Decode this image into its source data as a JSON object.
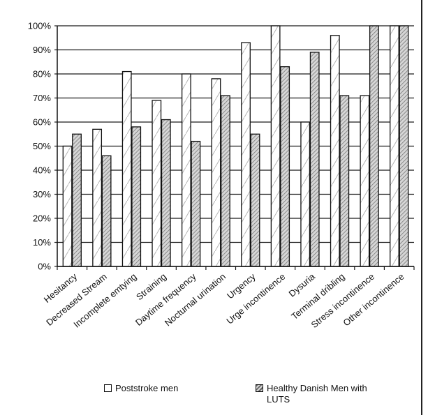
{
  "chart_data": {
    "type": "bar",
    "categories": [
      "Hesitancy",
      "Decreased Stream",
      "Incomplete emtying",
      "Straining",
      "Daytime frequency",
      "Nocturnal urination",
      "Urgency",
      "Urge incontinence",
      "Dysuria",
      "Terminal dribling",
      "Stress incontinence",
      "Other incontinence"
    ],
    "series": [
      {
        "name": "Poststroke men",
        "values": [
          50,
          57,
          81,
          69,
          80,
          78,
          93,
          100,
          60,
          96,
          71,
          100
        ],
        "color": "#ffffff",
        "pattern": "white-hatched"
      },
      {
        "name": "Healthy Danish Men with LUTS",
        "values": [
          55,
          46,
          58,
          61,
          52,
          71,
          55,
          83,
          89,
          71,
          100,
          100
        ],
        "color": "#d0d0d0",
        "pattern": "dense-hatched"
      }
    ],
    "yticks": [
      "0%",
      "10%",
      "20%",
      "30%",
      "40%",
      "50%",
      "60%",
      "70%",
      "80%",
      "90%",
      "100%"
    ],
    "ylim": [
      0,
      100
    ],
    "title": "",
    "xlabel": "",
    "ylabel": "",
    "grid": true,
    "legend_position": "bottom"
  }
}
